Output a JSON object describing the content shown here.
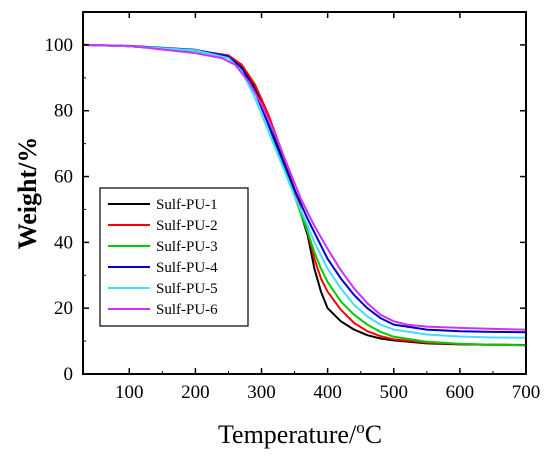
{
  "chart_data": {
    "type": "line",
    "xlabel": "Temperature/",
    "xlabel_unit": "°C",
    "ylabel": "Weight/%",
    "xlim": [
      30,
      700
    ],
    "ylim": [
      0,
      110
    ],
    "xticks": [
      100,
      200,
      300,
      400,
      500,
      600,
      700
    ],
    "yticks": [
      0,
      20,
      40,
      60,
      80,
      100
    ],
    "grid": false,
    "legend_position": "lower-left",
    "series": [
      {
        "name": "Sulf-PU-1",
        "color": "#000000",
        "x": [
          30,
          100,
          200,
          250,
          270,
          290,
          310,
          330,
          350,
          370,
          380,
          390,
          400,
          420,
          440,
          460,
          480,
          500,
          550,
          600,
          650,
          700
        ],
        "y": [
          100,
          99.6,
          98.3,
          96.5,
          93.5,
          87,
          78,
          67,
          55,
          42,
          32,
          25,
          20,
          16,
          13.5,
          11.8,
          10.8,
          10.2,
          9.3,
          9.0,
          8.9,
          8.8
        ]
      },
      {
        "name": "Sulf-PU-2",
        "color": "#ff0000",
        "x": [
          30,
          100,
          200,
          250,
          270,
          290,
          310,
          330,
          350,
          370,
          380,
          390,
          400,
          420,
          440,
          460,
          480,
          500,
          550,
          600,
          650,
          700
        ],
        "y": [
          100,
          99.6,
          98.3,
          96.8,
          94,
          88,
          79,
          68,
          56,
          43,
          35,
          29,
          25,
          19.5,
          15.5,
          13,
          11.5,
          10.5,
          9.5,
          9.1,
          8.9,
          8.8
        ]
      },
      {
        "name": "Sulf-PU-3",
        "color": "#00cc00",
        "x": [
          30,
          100,
          200,
          250,
          270,
          290,
          310,
          330,
          350,
          370,
          380,
          390,
          400,
          420,
          440,
          460,
          480,
          500,
          550,
          600,
          650,
          700
        ],
        "y": [
          100,
          99.6,
          98.2,
          96.2,
          92.5,
          86,
          76,
          65,
          54,
          43,
          37,
          32,
          28,
          22,
          18,
          15,
          12.8,
          11.3,
          9.8,
          9.2,
          8.9,
          8.7
        ]
      },
      {
        "name": "Sulf-PU-4",
        "color": "#0000cc",
        "x": [
          30,
          100,
          200,
          250,
          270,
          290,
          310,
          330,
          350,
          370,
          380,
          390,
          400,
          420,
          440,
          460,
          480,
          500,
          550,
          600,
          650,
          700
        ],
        "y": [
          100,
          99.7,
          98.5,
          96.5,
          93,
          86,
          76,
          66,
          56,
          47,
          43,
          39,
          35,
          29,
          24,
          20,
          17,
          15,
          13.5,
          13,
          12.8,
          12.7
        ]
      },
      {
        "name": "Sulf-PU-5",
        "color": "#44ddff",
        "x": [
          30,
          100,
          200,
          250,
          270,
          290,
          310,
          330,
          350,
          370,
          380,
          390,
          400,
          420,
          440,
          460,
          480,
          500,
          550,
          600,
          650,
          700
        ],
        "y": [
          100,
          99.6,
          98.4,
          96,
          92,
          84,
          74,
          64,
          54,
          45,
          40,
          36,
          32,
          26,
          21,
          17.5,
          15,
          13.5,
          12,
          11.4,
          11.1,
          11.0
        ]
      },
      {
        "name": "Sulf-PU-6",
        "color": "#cc33ff",
        "x": [
          30,
          100,
          200,
          240,
          260,
          280,
          300,
          320,
          340,
          360,
          380,
          400,
          420,
          440,
          460,
          480,
          500,
          520,
          550,
          600,
          650,
          700
        ],
        "y": [
          100,
          99.7,
          97.5,
          96,
          94,
          89,
          82,
          73,
          63,
          53,
          45,
          38,
          31.5,
          26,
          21.5,
          18,
          16,
          15,
          14.4,
          14,
          13.7,
          13.5
        ]
      }
    ]
  }
}
